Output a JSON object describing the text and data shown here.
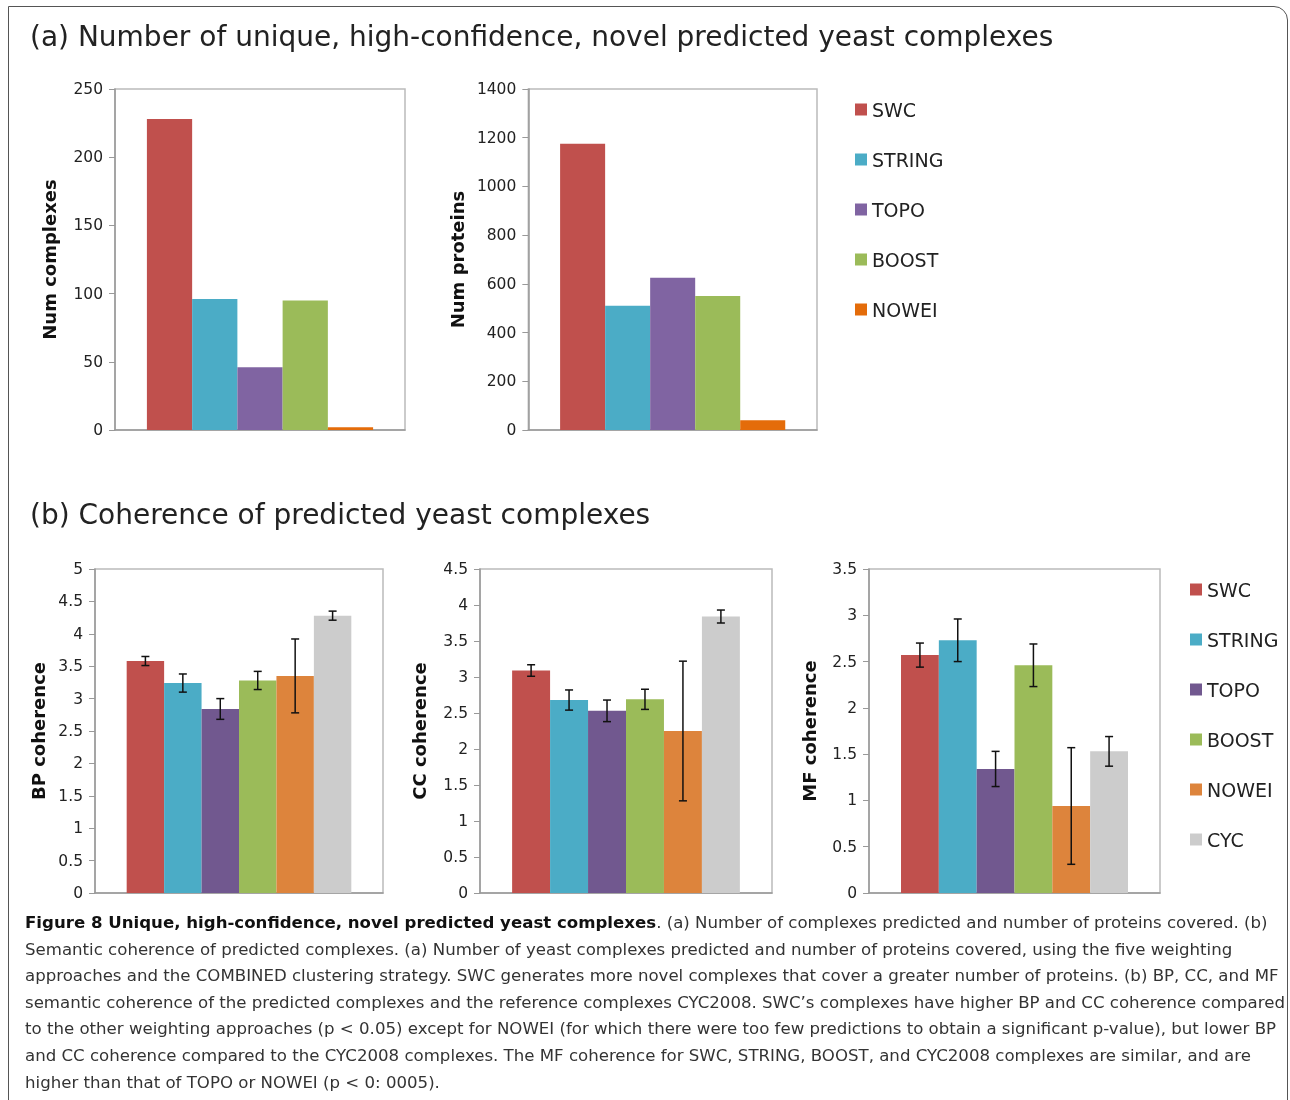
{
  "chart_data": [
    {
      "type": "bar",
      "title": "(a) Number of unique, high-confidence, novel predicted yeast complexes",
      "ylabel": "Num complexes",
      "categories": [
        null
      ],
      "ylim": [
        0,
        250
      ],
      "yticks": [
        0,
        50,
        100,
        150,
        200,
        250
      ],
      "grid": false,
      "legend": false,
      "series": [
        {
          "color": "#c0504d",
          "values": [
            228
          ]
        },
        {
          "color": "#4bacc6",
          "values": [
            96
          ]
        },
        {
          "color": "#8064a2",
          "values": [
            46
          ]
        },
        {
          "color": "#9bbb59",
          "values": [
            95
          ]
        },
        {
          "color": "#e46c0a",
          "values": [
            2
          ]
        }
      ]
    },
    {
      "type": "bar",
      "ylabel": "Num proteins",
      "categories": [
        null
      ],
      "ylim": [
        0,
        1400
      ],
      "yticks": [
        0,
        200,
        400,
        600,
        800,
        1000,
        1200,
        1400
      ],
      "grid": false,
      "legend": "right",
      "series": [
        {
          "name": "SWC",
          "color": "#c0504d",
          "values": [
            1175
          ]
        },
        {
          "name": "STRING",
          "color": "#4bacc6",
          "values": [
            510
          ]
        },
        {
          "name": "TOPO",
          "color": "#8064a2",
          "values": [
            625
          ]
        },
        {
          "name": "BOOST",
          "color": "#9bbb59",
          "values": [
            550
          ]
        },
        {
          "name": "NOWEI",
          "color": "#e46c0a",
          "values": [
            40
          ]
        }
      ]
    },
    {
      "type": "bar",
      "title": "(b) Coherence of predicted yeast complexes",
      "ylabel": "BP coherence",
      "categories": [
        null
      ],
      "ylim": [
        0,
        5
      ],
      "yticks": [
        0,
        0.5,
        1,
        1.5,
        2,
        2.5,
        3,
        3.5,
        4,
        4.5,
        5
      ],
      "grid": false,
      "legend": false,
      "series": [
        {
          "color": "#c0504d",
          "values": [
            3.58
          ],
          "errors": [
            0.07
          ]
        },
        {
          "color": "#4bacc6",
          "values": [
            3.24
          ],
          "errors": [
            0.14
          ]
        },
        {
          "color": "#71588f",
          "values": [
            2.84
          ],
          "errors": [
            0.16
          ]
        },
        {
          "color": "#9bbb59",
          "values": [
            3.28
          ],
          "errors": [
            0.14
          ]
        },
        {
          "color": "#dd843c",
          "values": [
            3.35
          ],
          "errors": [
            0.57
          ]
        },
        {
          "color": "#cccccc",
          "values": [
            4.28
          ],
          "errors": [
            0.07
          ]
        }
      ]
    },
    {
      "type": "bar",
      "ylabel": "CC coherence",
      "categories": [
        null
      ],
      "ylim": [
        0,
        4.5
      ],
      "yticks": [
        0,
        0.5,
        1,
        1.5,
        2,
        2.5,
        3,
        3.5,
        4,
        4.5
      ],
      "grid": false,
      "legend": false,
      "series": [
        {
          "color": "#c0504d",
          "values": [
            3.09
          ],
          "errors": [
            0.08
          ]
        },
        {
          "color": "#4bacc6",
          "values": [
            2.68
          ],
          "errors": [
            0.14
          ]
        },
        {
          "color": "#71588f",
          "values": [
            2.53
          ],
          "errors": [
            0.15
          ]
        },
        {
          "color": "#9bbb59",
          "values": [
            2.69
          ],
          "errors": [
            0.14
          ]
        },
        {
          "color": "#dd843c",
          "values": [
            2.25
          ],
          "errors": [
            0.97
          ]
        },
        {
          "color": "#cccccc",
          "values": [
            3.84
          ],
          "errors": [
            0.09
          ]
        }
      ]
    },
    {
      "type": "bar",
      "ylabel": "MF coherence",
      "categories": [
        null
      ],
      "ylim": [
        0,
        3.5
      ],
      "yticks": [
        0,
        0.5,
        1,
        1.5,
        2,
        2.5,
        3,
        3.5
      ],
      "grid": false,
      "legend": "right",
      "annotations": [
        "Figure 8 Unique, high-confidence, novel predicted yeast complexes",
        ". (a) Number of complexes predicted and number of proteins covered. (b) Semantic coherence of predicted complexes. (a) Number of yeast complexes predicted and number of proteins covered, using the five weighting approaches and the COMBINED clustering strategy. SWC generates more novel complexes that cover a greater number of proteins. (b) BP, CC, and MF semantic coherence of the predicted complexes and the reference complexes CYC2008. SWC’s complexes have higher BP and CC coherence compared to the other weighting approaches (p < 0.05) except for NOWEI (for which there were too few predictions to obtain a significant p-value), but lower BP and CC coherence compared to the CYC2008 complexes. The MF coherence for SWC, STRING, BOOST, and CYC2008 complexes are similar, and are higher than that of TOPO or NOWEI (p < 0: 0005)."
      ],
      "series": [
        {
          "name": "SWC",
          "color": "#c0504d",
          "values": [
            2.57
          ],
          "errors": [
            0.13
          ]
        },
        {
          "name": "STRING",
          "color": "#4bacc6",
          "values": [
            2.73
          ],
          "errors": [
            0.23
          ]
        },
        {
          "name": "TOPO",
          "color": "#71588f",
          "values": [
            1.34
          ],
          "errors": [
            0.19
          ]
        },
        {
          "name": "BOOST",
          "color": "#9bbb59",
          "values": [
            2.46
          ],
          "errors": [
            0.23
          ]
        },
        {
          "name": "NOWEI",
          "color": "#dd843c",
          "values": [
            0.94
          ],
          "errors": [
            0.63
          ]
        },
        {
          "name": "CYC",
          "color": "#cccccc",
          "values": [
            1.53
          ],
          "errors": [
            0.16
          ]
        }
      ]
    }
  ]
}
